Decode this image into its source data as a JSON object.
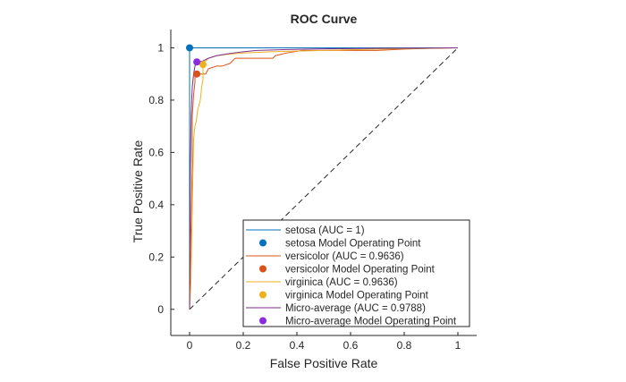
{
  "chart_data": {
    "type": "line",
    "title": "ROC Curve",
    "xlabel": "False Positive Rate",
    "ylabel": "True Positive Rate",
    "xlim": [
      -0.07,
      1.07
    ],
    "ylim": [
      -0.1,
      1.07
    ],
    "xticks": [
      0,
      0.2,
      0.4,
      0.6,
      0.8,
      1
    ],
    "xtick_labels": [
      "0",
      "0.2",
      "0.4",
      "0.6",
      "0.8",
      "1"
    ],
    "yticks": [
      0,
      0.2,
      0.4,
      0.6,
      0.8,
      1
    ],
    "ytick_labels": [
      "0",
      "0.2",
      "0.4",
      "0.6",
      "0.8",
      "1"
    ],
    "grid": false,
    "legend_position": "bottom-right",
    "diagonal": {
      "x": [
        0,
        1
      ],
      "y": [
        0,
        1
      ],
      "style": "dashed",
      "color": "#262626"
    },
    "series": [
      {
        "name": "setosa (AUC = 1)",
        "color": "#0072BD",
        "x": [
          0,
          0,
          1
        ],
        "y": [
          0,
          1,
          1
        ]
      },
      {
        "name": "versicolor (AUC = 0.9636)",
        "color": "#D95319",
        "x": [
          0,
          0.005,
          0.01,
          0.01,
          0.015,
          0.02,
          0.02,
          0.03,
          0.05,
          0.06,
          0.07,
          0.1,
          0.12,
          0.15,
          0.17,
          0.24,
          0.31,
          0.32,
          0.36,
          0.42,
          0.5,
          0.6,
          0.7,
          0.8,
          0.9,
          1
        ],
        "y": [
          0,
          0.3,
          0.55,
          0.74,
          0.82,
          0.87,
          0.9,
          0.9,
          0.9,
          0.9,
          0.92,
          0.93,
          0.93,
          0.94,
          0.96,
          0.96,
          0.96,
          0.97,
          0.98,
          0.99,
          0.99,
          0.99,
          0.99,
          0.995,
          0.998,
          1
        ]
      },
      {
        "name": "virginica (AUC = 0.9636)",
        "color": "#EDB120",
        "x": [
          0,
          0.005,
          0.01,
          0.015,
          0.02,
          0.025,
          0.03,
          0.04,
          0.045,
          0.05,
          0.05,
          0.06,
          0.07,
          0.1,
          0.14,
          0.2,
          0.3,
          0.5,
          0.7,
          0.9,
          1
        ],
        "y": [
          0,
          0.1,
          0.4,
          0.65,
          0.7,
          0.72,
          0.76,
          0.8,
          0.85,
          0.88,
          0.94,
          0.95,
          0.96,
          0.97,
          0.975,
          0.98,
          0.985,
          0.99,
          0.995,
          0.998,
          1
        ]
      },
      {
        "name": "Micro-average (AUC = 0.9788)",
        "color": "#7E2F8E",
        "x": [
          0,
          0.003,
          0.006,
          0.01,
          0.015,
          0.02,
          0.025,
          0.03,
          0.05,
          0.07,
          0.1,
          0.13,
          0.16,
          0.2,
          0.25,
          0.35,
          0.5,
          0.7,
          0.9,
          1
        ],
        "y": [
          0,
          0.55,
          0.75,
          0.85,
          0.9,
          0.93,
          0.945,
          0.945,
          0.95,
          0.96,
          0.97,
          0.975,
          0.98,
          0.985,
          0.99,
          0.993,
          0.996,
          0.998,
          0.999,
          1
        ]
      }
    ],
    "operating_points": [
      {
        "name": "setosa Model Operating Point",
        "color": "#0072BD",
        "x": 0,
        "y": 1
      },
      {
        "name": "versicolor Model Operating Point",
        "color": "#D95319",
        "x": 0.027,
        "y": 0.9
      },
      {
        "name": "virginica Model Operating Point",
        "color": "#EDB120",
        "x": 0.05,
        "y": 0.936
      },
      {
        "name": "Micro-average Model Operating Point",
        "color": "#8A2BE2",
        "x": 0.027,
        "y": 0.946
      }
    ],
    "legend": [
      {
        "kind": "line",
        "label": "setosa (AUC = 1)",
        "color": "#0072BD"
      },
      {
        "kind": "marker",
        "label": "setosa Model Operating Point",
        "color": "#0072BD"
      },
      {
        "kind": "line",
        "label": "versicolor (AUC = 0.9636)",
        "color": "#D95319"
      },
      {
        "kind": "marker",
        "label": "versicolor Model Operating Point",
        "color": "#D95319"
      },
      {
        "kind": "line",
        "label": "virginica (AUC = 0.9636)",
        "color": "#EDB120"
      },
      {
        "kind": "marker",
        "label": "virginica Model Operating Point",
        "color": "#EDB120"
      },
      {
        "kind": "line",
        "label": "Micro-average (AUC = 0.9788)",
        "color": "#7E2F8E"
      },
      {
        "kind": "marker",
        "label": "Micro-average Model Operating Point",
        "color": "#8A2BE2"
      }
    ]
  }
}
